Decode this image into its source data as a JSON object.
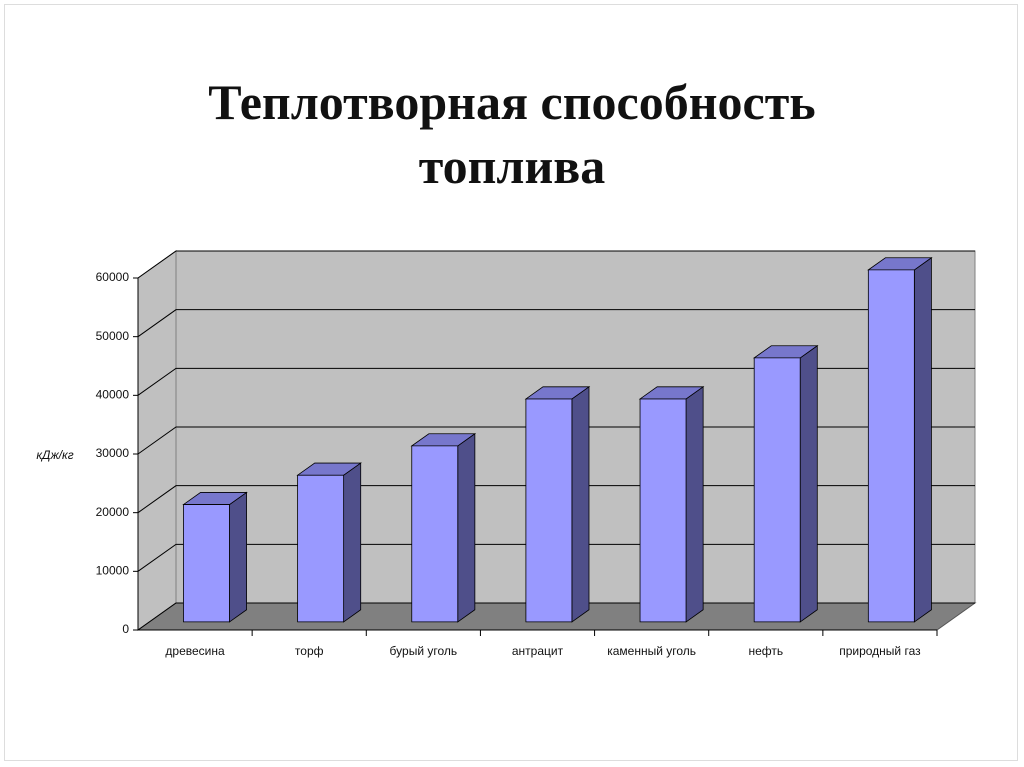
{
  "chart_data": {
    "type": "bar3d",
    "title": "Теплотворная способность топлива",
    "y_label": "кДж/кг",
    "categories": [
      "древесина",
      "торф",
      "бурый уголь",
      "антрацит",
      "каменный уголь",
      "нефть",
      "природный газ"
    ],
    "values": [
      20000,
      25000,
      30000,
      38000,
      38000,
      45000,
      60000
    ],
    "color": "#9999ff",
    "ylim": [
      0,
      60000
    ],
    "yticks": [
      0,
      10000,
      20000,
      30000,
      40000,
      50000,
      60000
    ],
    "grid": true
  }
}
